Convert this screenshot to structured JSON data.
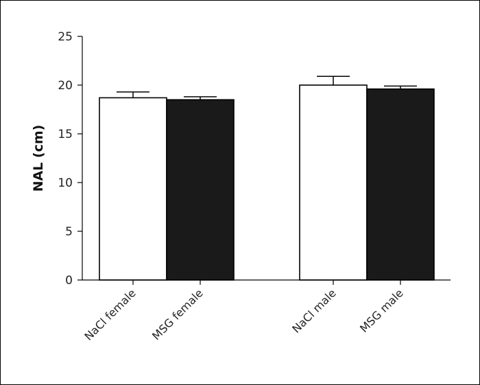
{
  "chart_data": {
    "type": "bar",
    "title": "",
    "xlabel": "",
    "ylabel": "NAL (cm)",
    "ylim": [
      0,
      25
    ],
    "yticks": [
      0,
      5,
      10,
      15,
      20,
      25
    ],
    "grid": false,
    "legend": "none",
    "categories": [
      "NaCl female",
      "MSG female",
      "NaCl male",
      "MSG male"
    ],
    "values": [
      18.7,
      18.5,
      20.0,
      19.6
    ],
    "errors": [
      0.6,
      0.3,
      0.9,
      0.3
    ],
    "colors": [
      "#ffffff",
      "#1a1a1a",
      "#ffffff",
      "#1a1a1a"
    ],
    "edge_color": "#000000"
  }
}
